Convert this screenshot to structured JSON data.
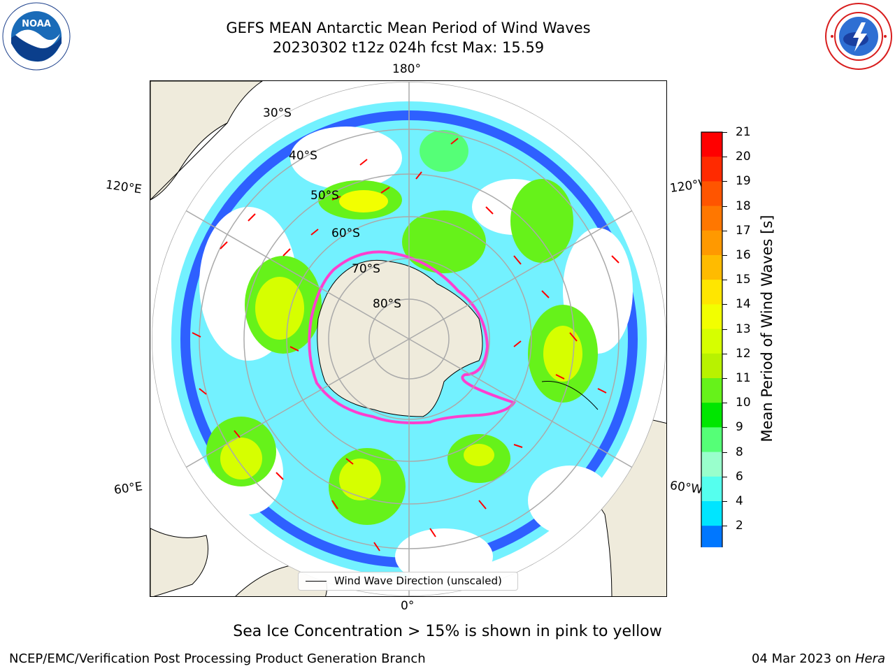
{
  "title": {
    "line1": "GEFS MEAN Antarctic Mean Period of Wind Waves",
    "line2": "20230302 t12z 024h fcst   Max: 15.59"
  },
  "logos": {
    "left": "noaa-logo",
    "right": "national-weather-service-logo"
  },
  "map": {
    "projection": "south-polar-stereographic",
    "lon_labels": {
      "top": "180°",
      "bottom": "0°",
      "left_upper": "120°E",
      "left_lower": "60°E",
      "right_upper": "120°W",
      "right_lower": "60°W"
    },
    "lat_labels": [
      "30°S",
      "40°S",
      "50°S",
      "60°S",
      "70°S",
      "80°S"
    ],
    "land_color": "#efebdc",
    "ocean_no_data_color": "#ffffff",
    "ice_colors": [
      "#ff3fcf",
      "#ff66ff",
      "#ffcc33"
    ]
  },
  "legend": {
    "text": "Wind Wave Direction (unscaled)"
  },
  "colorbar": {
    "label": "Mean Period of Wind Waves [s]",
    "ticks": [
      "21",
      "20",
      "19",
      "18",
      "17",
      "16",
      "15",
      "14",
      "13",
      "12",
      "11",
      "10",
      "9",
      "8",
      "6",
      "4",
      "2"
    ],
    "colors": [
      "#ff0000",
      "#ff2a00",
      "#ff5500",
      "#ff7700",
      "#ff9900",
      "#ffbb00",
      "#ffe600",
      "#f2ff00",
      "#d6ff00",
      "#b8f200",
      "#66f21a",
      "#00e600",
      "#55ff77",
      "#99ffcc",
      "#55ffee",
      "#00e5ff",
      "#0077ff"
    ],
    "extend_color": "#0000ff"
  },
  "notes": {
    "ice": "Sea Ice Concentration > 15% is shown in pink to yellow"
  },
  "footer": {
    "left": "NCEP/EMC/Verification Post Processing Product Generation Branch",
    "date": "04 Mar 2023 on ",
    "machine": "Hera"
  }
}
